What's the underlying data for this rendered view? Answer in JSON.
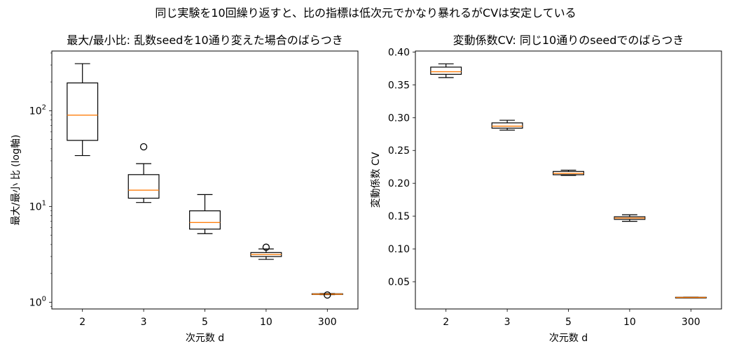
{
  "suptitle": "同じ実験を10回繰り返すと、比の指標は低次元でかなり暴れるがCVは安定している",
  "chart_data": [
    {
      "type": "box",
      "title": "最大/最小比: 乱数seedを10通り変えた場合のばらつき",
      "xlabel": "次元数 d",
      "ylabel": "最大/最小 比 (log軸)",
      "yscale": "log",
      "ylim": [
        0.85,
        420
      ],
      "yticks": [
        1,
        10,
        100
      ],
      "categories": [
        "2",
        "3",
        "5",
        "10",
        "300"
      ],
      "boxes": [
        {
          "whislo": 34,
          "q1": 49,
          "med": 90,
          "q3": 195,
          "whishi": 310,
          "fliers": []
        },
        {
          "whislo": 11,
          "q1": 12.2,
          "med": 14.8,
          "q3": 21.5,
          "whishi": 28,
          "fliers": [
            42
          ]
        },
        {
          "whislo": 5.2,
          "q1": 5.8,
          "med": 6.8,
          "q3": 9,
          "whishi": 13.3,
          "fliers": []
        },
        {
          "whislo": 2.8,
          "q1": 3.0,
          "med": 3.15,
          "q3": 3.3,
          "whishi": 3.6,
          "fliers": [
            3.75
          ]
        },
        {
          "whislo": 1.2,
          "q1": 1.21,
          "med": 1.215,
          "q3": 1.225,
          "whishi": 1.23,
          "fliers": [
            1.19
          ]
        }
      ],
      "colors": {
        "box": "#000000",
        "median": "#ff7f0e"
      }
    },
    {
      "type": "box",
      "title": "変動係数CV: 同じ10通りのseedでのばらつき",
      "xlabel": "次元数 d",
      "ylabel": "変動係数 CV",
      "yscale": "linear",
      "ylim": [
        0.0085,
        0.4015
      ],
      "yticks": [
        0.05,
        0.1,
        0.15,
        0.2,
        0.25,
        0.3,
        0.35,
        0.4
      ],
      "ytick_labels": [
        "0.05",
        "0.10",
        "0.15",
        "0.20",
        "0.25",
        "0.30",
        "0.35",
        "0.40"
      ],
      "categories": [
        "2",
        "3",
        "5",
        "10",
        "300"
      ],
      "boxes": [
        {
          "whislo": 0.361,
          "q1": 0.366,
          "med": 0.37,
          "q3": 0.377,
          "whishi": 0.382,
          "fliers": []
        },
        {
          "whislo": 0.281,
          "q1": 0.284,
          "med": 0.287,
          "q3": 0.292,
          "whishi": 0.296,
          "fliers": []
        },
        {
          "whislo": 0.212,
          "q1": 0.213,
          "med": 0.215,
          "q3": 0.218,
          "whishi": 0.22,
          "fliers": []
        },
        {
          "whislo": 0.142,
          "q1": 0.145,
          "med": 0.147,
          "q3": 0.149,
          "whishi": 0.152,
          "fliers": []
        },
        {
          "whislo": 0.0255,
          "q1": 0.0258,
          "med": 0.026,
          "q3": 0.0263,
          "whishi": 0.0265,
          "fliers": []
        }
      ],
      "colors": {
        "box": "#000000",
        "median": "#ff7f0e"
      }
    }
  ]
}
